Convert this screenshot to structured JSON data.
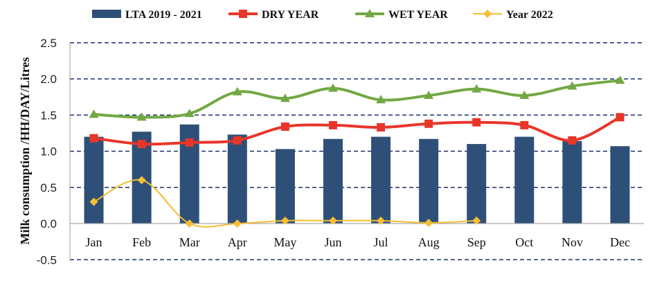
{
  "chart_data": {
    "type": "bar+line",
    "categories": [
      "Jan",
      "Feb",
      "Mar",
      "Apr",
      "May",
      "Jun",
      "Jul",
      "Aug",
      "Sep",
      "Oct",
      "Nov",
      "Dec"
    ],
    "ylabel": "Milk consumption /HH/DAY/Litres",
    "xlabel": "",
    "ylim": [
      -0.5,
      2.5
    ],
    "yticks": [
      "2.5",
      "2.0",
      "1.5",
      "1.0",
      "0.5",
      "0.0",
      "-0.5"
    ],
    "grid": true,
    "legend_position": "top",
    "series": [
      {
        "name": "LTA 2019 - 2021",
        "type": "bar",
        "color": "#2e5078",
        "values": [
          1.2,
          1.27,
          1.37,
          1.23,
          1.03,
          1.17,
          1.2,
          1.17,
          1.1,
          1.2,
          1.14,
          1.07
        ]
      },
      {
        "name": "DRY YEAR",
        "type": "line",
        "marker": "square",
        "color": "#e8352a",
        "values": [
          1.18,
          1.1,
          1.12,
          1.15,
          1.34,
          1.36,
          1.33,
          1.38,
          1.4,
          1.36,
          1.15,
          1.47
        ]
      },
      {
        "name": "WET YEAR",
        "type": "line",
        "marker": "triangle",
        "color": "#72a843",
        "values": [
          1.51,
          1.47,
          1.52,
          1.82,
          1.73,
          1.87,
          1.71,
          1.77,
          1.86,
          1.77,
          1.9,
          1.98
        ]
      },
      {
        "name": "Year 2022",
        "type": "line",
        "marker": "diamond",
        "color": "#f4bd33",
        "values": [
          0.3,
          0.6,
          0.0,
          0.0,
          0.04,
          0.04,
          0.04,
          0.01,
          0.04,
          null,
          null,
          null
        ]
      }
    ]
  }
}
